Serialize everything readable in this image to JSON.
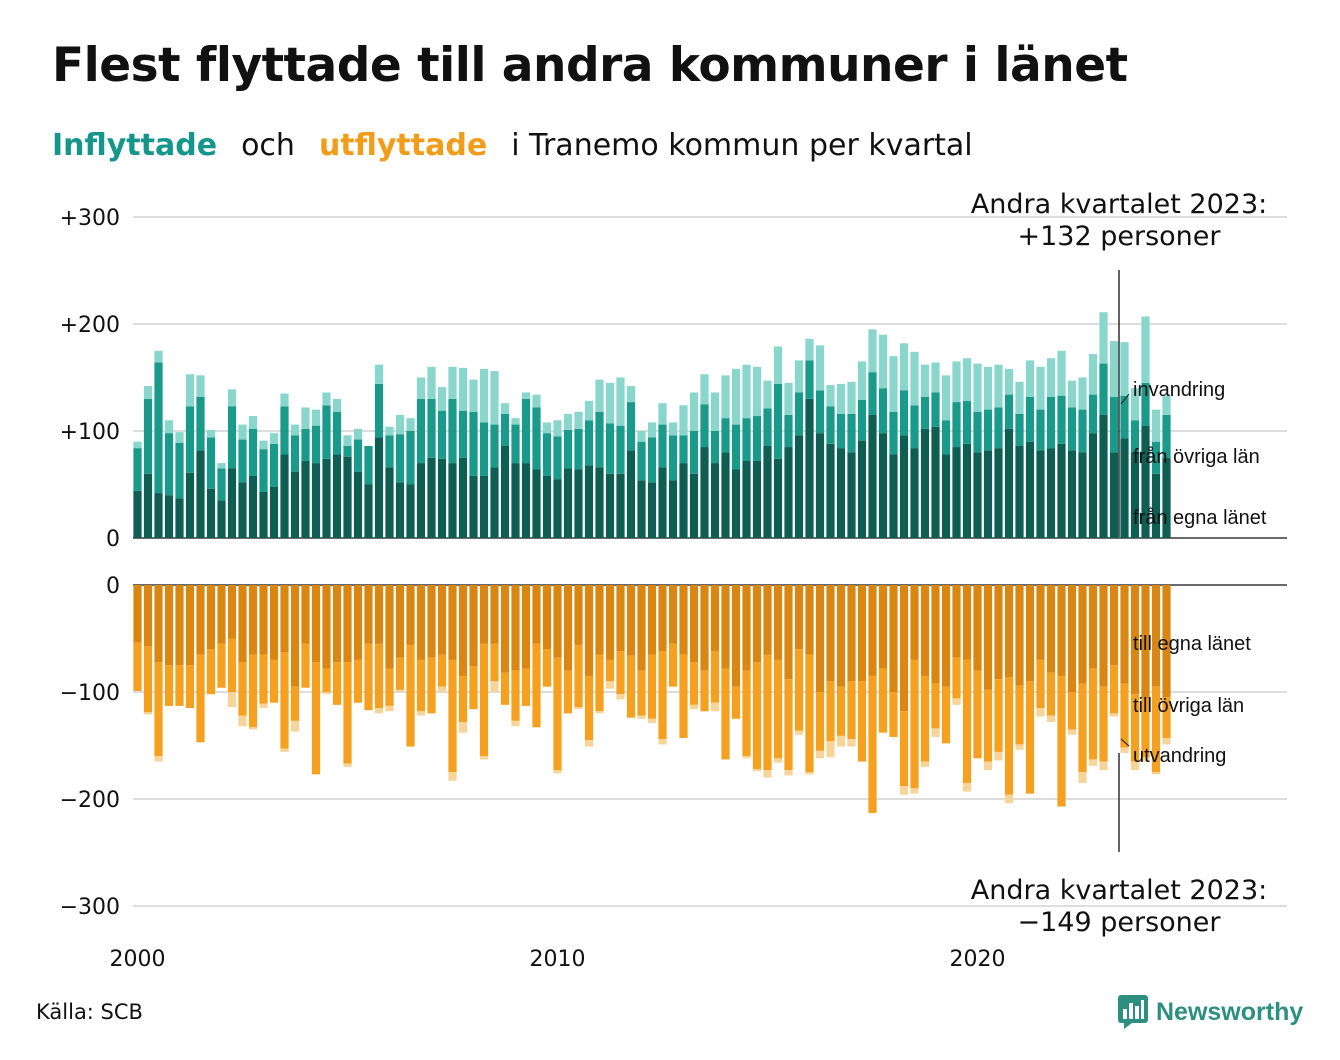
{
  "title": "Flest flyttade till andra kommuner i länet",
  "subtitle": {
    "part1": "Inflyttade",
    "part2": "och",
    "part3": "utflyttade",
    "part4": "i Tranemo  kommun  per  kvartal"
  },
  "source": "Källa: SCB",
  "logo": {
    "text": "Newsworthy",
    "icon": "newsworthy-chart-icon"
  },
  "colors": {
    "in_dark": "#0f5e54",
    "in_mid": "#1a9a8b",
    "in_light": "#89d6cc",
    "out_dark": "#d98712",
    "out_mid": "#f5a01f",
    "out_light": "#f7d49a",
    "grid": "#dddddd",
    "axis": "#111111"
  },
  "chart_data": {
    "type": "bar",
    "stacked": true,
    "x_start": "2000 Q1",
    "x_end": "2023 Q2",
    "x_ticks": [
      "2000",
      "2010",
      "2020"
    ],
    "y_ticks_top": [
      "+300",
      "+200",
      "+100",
      "0"
    ],
    "y_ticks_bottom": [
      "0",
      "−100",
      "−200",
      "−300"
    ],
    "ylim_top": [
      0,
      300
    ],
    "ylim_bottom": [
      -300,
      0
    ],
    "annotation_top": {
      "line1": "Andra kvartalet 2023:",
      "line2": "+132 personer"
    },
    "annotation_bottom": {
      "line1": "Andra kvartalet 2023:",
      "line2": "−149 personer"
    },
    "series_labels": {
      "invandring": "invandring",
      "fran_ovriga": "från övriga län",
      "fran_egna": "från egna länet",
      "till_egna": "till egna länet",
      "till_ovriga": "till övriga län",
      "utvandring": "utvandring"
    },
    "inflyttade": {
      "fran_egna_lanet": [
        44,
        60,
        42,
        40,
        37,
        61,
        82,
        46,
        35,
        65,
        52,
        58,
        43,
        48,
        78,
        62,
        72,
        70,
        74,
        78,
        76,
        62,
        50,
        94,
        66,
        52,
        50,
        70,
        75,
        74,
        70,
        75,
        58,
        58,
        66,
        86,
        70,
        70,
        64,
        58,
        55,
        65,
        64,
        68,
        66,
        60,
        60,
        82,
        54,
        52,
        66,
        54,
        70,
        60,
        85,
        70,
        80,
        64,
        72,
        72,
        86,
        74,
        85,
        96,
        130,
        98,
        88,
        84,
        80,
        91,
        115,
        98,
        78,
        96,
        84,
        102,
        104,
        78,
        85,
        88,
        80,
        82,
        84,
        102,
        86,
        90,
        82,
        84,
        88,
        82,
        80,
        98,
        115,
        80,
        93,
        80,
        105,
        60,
        75
      ],
      "fran_ovriga_lan": [
        40,
        70,
        122,
        58,
        52,
        62,
        50,
        48,
        30,
        58,
        40,
        44,
        40,
        40,
        45,
        34,
        30,
        35,
        50,
        40,
        10,
        30,
        36,
        50,
        30,
        45,
        50,
        60,
        55,
        45,
        60,
        44,
        60,
        50,
        40,
        30,
        36,
        60,
        58,
        40,
        40,
        36,
        38,
        42,
        52,
        47,
        45,
        45,
        36,
        42,
        40,
        42,
        26,
        40,
        40,
        30,
        32,
        42,
        40,
        42,
        35,
        70,
        30,
        40,
        36,
        40,
        35,
        32,
        36,
        38,
        40,
        42,
        40,
        42,
        40,
        30,
        32,
        32,
        42,
        40,
        38,
        38,
        38,
        32,
        30,
        42,
        38,
        48,
        45,
        40,
        40,
        36,
        48,
        52,
        40,
        30,
        40,
        30,
        40
      ],
      "invandring": [
        6,
        12,
        11,
        12,
        10,
        30,
        20,
        7,
        5,
        16,
        14,
        12,
        8,
        10,
        12,
        10,
        20,
        15,
        12,
        12,
        10,
        10,
        0,
        18,
        8,
        18,
        12,
        20,
        30,
        22,
        30,
        40,
        30,
        50,
        50,
        10,
        6,
        6,
        12,
        10,
        15,
        15,
        16,
        18,
        30,
        38,
        45,
        15,
        10,
        14,
        20,
        12,
        28,
        36,
        28,
        36,
        40,
        52,
        50,
        46,
        26,
        35,
        30,
        30,
        20,
        42,
        20,
        28,
        30,
        36,
        40,
        50,
        52,
        44,
        50,
        30,
        28,
        42,
        38,
        40,
        45,
        40,
        40,
        24,
        30,
        34,
        40,
        36,
        42,
        25,
        30,
        38,
        48,
        52,
        50,
        30,
        62,
        30,
        18
      ]
    },
    "utflyttade": {
      "till_egna_lanet": [
        54,
        57,
        72,
        75,
        75,
        75,
        65,
        60,
        55,
        50,
        72,
        65,
        65,
        70,
        63,
        95,
        55,
        72,
        78,
        72,
        72,
        70,
        55,
        55,
        78,
        68,
        56,
        70,
        68,
        65,
        70,
        85,
        76,
        55,
        55,
        82,
        80,
        78,
        55,
        60,
        68,
        80,
        56,
        85,
        65,
        70,
        62,
        66,
        80,
        65,
        62,
        55,
        65,
        72,
        80,
        62,
        78,
        95,
        80,
        72,
        65,
        70,
        88,
        60,
        65,
        100,
        90,
        95,
        90,
        90,
        85,
        78,
        100,
        118,
        70,
        85,
        92,
        95,
        68,
        70,
        80,
        98,
        88,
        86,
        94,
        90,
        70,
        82,
        85,
        100,
        92,
        78,
        95,
        75,
        92,
        102,
        106,
        95,
        105
      ],
      "till_ovriga_lan": [
        45,
        62,
        88,
        38,
        38,
        40,
        82,
        42,
        41,
        50,
        50,
        68,
        46,
        40,
        90,
        32,
        41,
        105,
        22,
        40,
        95,
        40,
        62,
        60,
        35,
        30,
        95,
        48,
        52,
        30,
        105,
        43,
        40,
        105,
        35,
        30,
        47,
        35,
        78,
        35,
        105,
        40,
        58,
        60,
        53,
        20,
        40,
        58,
        42,
        60,
        82,
        40,
        78,
        40,
        38,
        48,
        85,
        30,
        80,
        100,
        108,
        92,
        85,
        76,
        110,
        55,
        56,
        46,
        54,
        75,
        128,
        60,
        42,
        70,
        120,
        80,
        42,
        53,
        38,
        115,
        82,
        67,
        68,
        110,
        55,
        105,
        45,
        40,
        122,
        35,
        83,
        85,
        70,
        45,
        60,
        63,
        55,
        80,
        38
      ],
      "utvandring": [
        0,
        2,
        5,
        0,
        0,
        0,
        0,
        0,
        0,
        14,
        10,
        2,
        4,
        0,
        3,
        10,
        0,
        0,
        2,
        0,
        3,
        0,
        0,
        5,
        5,
        2,
        0,
        4,
        0,
        5,
        8,
        10,
        0,
        3,
        10,
        0,
        5,
        0,
        0,
        0,
        3,
        0,
        2,
        6,
        2,
        7,
        5,
        0,
        3,
        4,
        5,
        0,
        0,
        4,
        0,
        8,
        0,
        0,
        2,
        2,
        7,
        4,
        5,
        4,
        2,
        7,
        15,
        10,
        7,
        0,
        0,
        0,
        0,
        8,
        5,
        5,
        8,
        0,
        6,
        8,
        0,
        8,
        8,
        8,
        5,
        0,
        8,
        6,
        0,
        5,
        10,
        6,
        8,
        3,
        5,
        8,
        4,
        2,
        6
      ]
    }
  }
}
